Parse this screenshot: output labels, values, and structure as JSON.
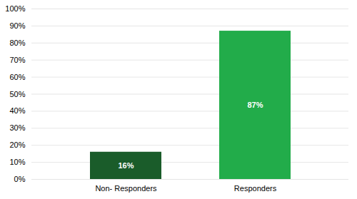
{
  "chart_data": {
    "type": "bar",
    "categories": [
      "Non- Responders",
      "Responders"
    ],
    "values": [
      16,
      87
    ],
    "value_labels": [
      "16%",
      "87%"
    ],
    "data_labels": true,
    "colors": [
      "#1a5c2a",
      "#22ac4a"
    ],
    "ylim": [
      0,
      100
    ],
    "yticks": [
      {
        "value": 0,
        "label": "0%"
      },
      {
        "value": 10,
        "label": "10%"
      },
      {
        "value": 20,
        "label": "20%"
      },
      {
        "value": 30,
        "label": "30%"
      },
      {
        "value": 40,
        "label": "40%"
      },
      {
        "value": 50,
        "label": "50%"
      },
      {
        "value": 60,
        "label": "60%"
      },
      {
        "value": 70,
        "label": "70%"
      },
      {
        "value": 80,
        "label": "80%"
      },
      {
        "value": 90,
        "label": "90%"
      },
      {
        "value": 100,
        "label": "100%"
      }
    ],
    "grid": true
  }
}
